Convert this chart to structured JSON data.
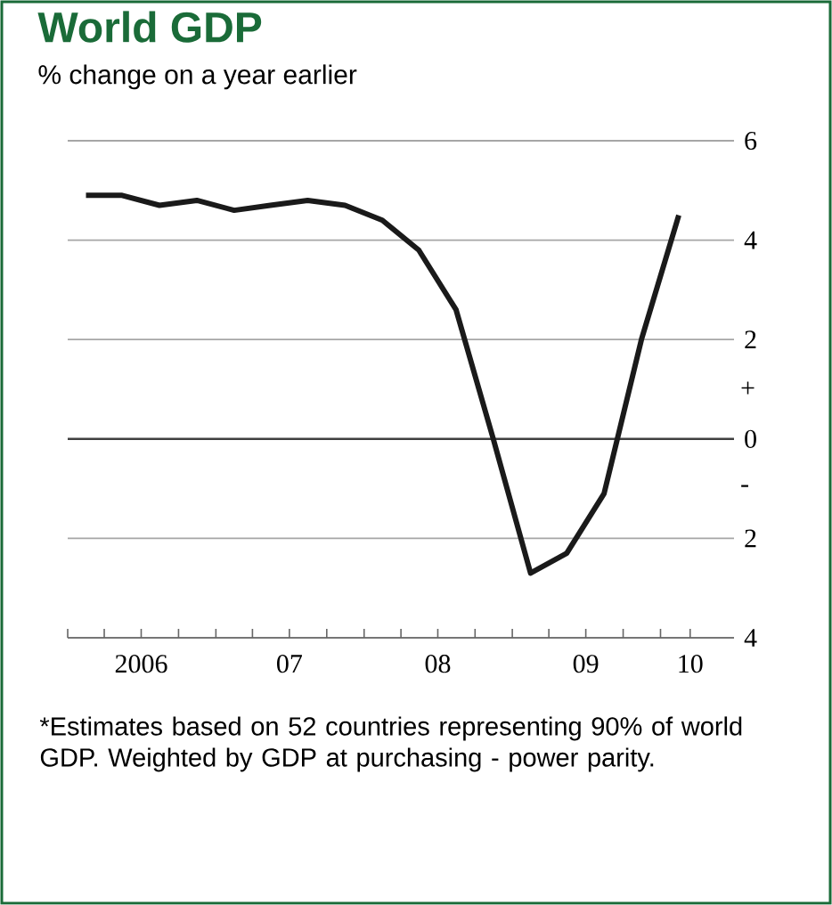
{
  "chart_data": {
    "type": "line",
    "title": "World GDP",
    "subtitle": "% change on a year earlier",
    "x": [
      "2006-02-15",
      "2006-05-15",
      "2006-08-15",
      "2006-11-15",
      "2007-02-15",
      "2007-05-15",
      "2007-08-15",
      "2007-11-15",
      "2008-02-15",
      "2008-05-15",
      "2008-08-15",
      "2008-11-15",
      "2009-02-15",
      "2009-05-15",
      "2009-08-15",
      "2009-11-15",
      "2010-02-15"
    ],
    "series": [
      {
        "color": "#1a1a1a",
        "values": [
          4.9,
          4.9,
          4.7,
          4.8,
          4.6,
          4.7,
          4.8,
          4.7,
          4.4,
          3.8,
          2.6,
          0.0,
          -2.7,
          -2.3,
          -1.1,
          2.0,
          4.5
        ]
      }
    ],
    "xlim": [
      "2006-01-01",
      "2010-07-01"
    ],
    "ylim": [
      -4,
      6
    ],
    "xticks": [
      {
        "value": "2006-01-01",
        "label": null
      },
      {
        "value": "2006-04-01",
        "label": null
      },
      {
        "value": "2006-07-01",
        "label": "2006"
      },
      {
        "value": "2006-10-01",
        "label": null
      },
      {
        "value": "2007-01-01",
        "label": null
      },
      {
        "value": "2007-04-01",
        "label": null
      },
      {
        "value": "2007-07-01",
        "label": "07"
      },
      {
        "value": "2007-10-01",
        "label": null
      },
      {
        "value": "2008-01-01",
        "label": null
      },
      {
        "value": "2008-04-01",
        "label": null
      },
      {
        "value": "2008-07-01",
        "label": "08"
      },
      {
        "value": "2008-10-01",
        "label": null
      },
      {
        "value": "2009-01-01",
        "label": null
      },
      {
        "value": "2009-04-01",
        "label": null
      },
      {
        "value": "2009-07-01",
        "label": "09"
      },
      {
        "value": "2009-10-01",
        "label": null
      },
      {
        "value": "2010-01-01",
        "label": null
      },
      {
        "value": "2010-03-15",
        "label": "10"
      }
    ],
    "yticks": [
      6,
      4,
      2,
      0,
      {
        "value": -2,
        "label": "2"
      },
      {
        "value": -4,
        "label": "4"
      }
    ],
    "grid": "y",
    "marker": "none",
    "line_style": "solid",
    "ref_lines": [
      {
        "axis": "y",
        "value": 0,
        "color": "#404040"
      }
    ],
    "annotations": [
      "+",
      "-",
      "*Estimates based on 52 countries representing 90% of world GDP. Weighted by GDP at purchasing - power parity."
    ]
  }
}
